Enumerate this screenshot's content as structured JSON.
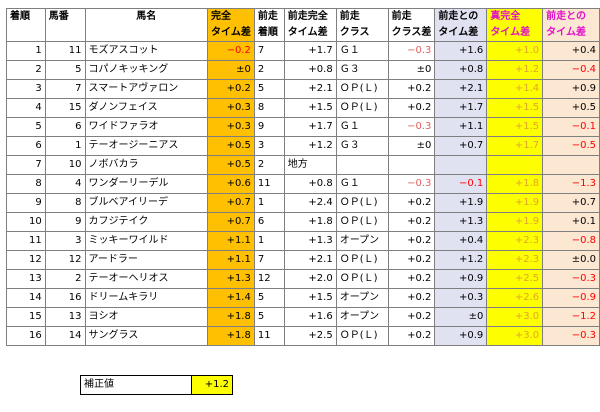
{
  "headers": {
    "rank": "着順",
    "num": "馬番",
    "name": "馬名",
    "time_diff_1": "完全",
    "time_diff_2": "タイム差",
    "prev_rank_1": "前走",
    "prev_rank_2": "着順",
    "prev_full_1": "前走完全",
    "prev_full_2": "タイム差",
    "prev_class_1": "前走",
    "prev_class_2": "クラス",
    "class_diff_1": "前走",
    "class_diff_2": "クラス差",
    "prev_cmp_1": "前走との",
    "prev_cmp_2": "タイム差",
    "true_1": "真完全",
    "true_2": "タイム差",
    "last_1": "前走との",
    "last_2": "タイム差"
  },
  "rows": [
    {
      "rank": "1",
      "num": "11",
      "name": "モズアスコット",
      "time": "−0.2",
      "prev_rank": "7",
      "prev_full": "+1.7",
      "prev_class": "Ｇ１",
      "class_diff": "−0.3",
      "prev_cmp": "+1.6",
      "true": "+1.0",
      "last": "+0.4"
    },
    {
      "rank": "2",
      "num": "5",
      "name": "コパノキッキング",
      "time": "±0",
      "prev_rank": "2",
      "prev_full": "+0.8",
      "prev_class": "Ｇ３",
      "class_diff": "±0",
      "prev_cmp": "+0.8",
      "true": "+1.2",
      "last": "−0.4"
    },
    {
      "rank": "3",
      "num": "7",
      "name": "スマートアヴァロン",
      "time": "+0.2",
      "prev_rank": "5",
      "prev_full": "+2.1",
      "prev_class": "ＯＰ(Ｌ)",
      "class_diff": "+0.2",
      "prev_cmp": "+2.1",
      "true": "+1.4",
      "last": "+0.9"
    },
    {
      "rank": "4",
      "num": "15",
      "name": "ダノンフェイス",
      "time": "+0.3",
      "prev_rank": "8",
      "prev_full": "+1.5",
      "prev_class": "ＯＰ(Ｌ)",
      "class_diff": "+0.2",
      "prev_cmp": "+1.7",
      "true": "+1.5",
      "last": "+0.5"
    },
    {
      "rank": "5",
      "num": "6",
      "name": "ワイドファラオ",
      "time": "+0.3",
      "prev_rank": "9",
      "prev_full": "+1.7",
      "prev_class": "Ｇ１",
      "class_diff": "−0.3",
      "prev_cmp": "+1.1",
      "true": "+1.5",
      "last": "−0.1"
    },
    {
      "rank": "6",
      "num": "1",
      "name": "テーオージーニアス",
      "time": "+0.5",
      "prev_rank": "3",
      "prev_full": "+1.2",
      "prev_class": "Ｇ３",
      "class_diff": "±0",
      "prev_cmp": "+0.7",
      "true": "+1.7",
      "last": "−0.5"
    },
    {
      "rank": "7",
      "num": "10",
      "name": "ノボバカラ",
      "time": "+0.5",
      "prev_rank": "2",
      "prev_full": "地方",
      "prev_class": "",
      "class_diff": "",
      "prev_cmp": "",
      "true": "",
      "last": ""
    },
    {
      "rank": "8",
      "num": "4",
      "name": "ワンダーリーデル",
      "time": "+0.6",
      "prev_rank": "11",
      "prev_full": "+0.8",
      "prev_class": "Ｇ１",
      "class_diff": "−0.3",
      "prev_cmp": "−0.1",
      "true": "+1.8",
      "last": "−1.3"
    },
    {
      "rank": "9",
      "num": "8",
      "name": "ブルベアイリーデ",
      "time": "+0.7",
      "prev_rank": "1",
      "prev_full": "+2.4",
      "prev_class": "ＯＰ(Ｌ)",
      "class_diff": "+0.2",
      "prev_cmp": "+1.9",
      "true": "+1.9",
      "last": "+0.7"
    },
    {
      "rank": "10",
      "num": "9",
      "name": "カフジテイク",
      "time": "+0.7",
      "prev_rank": "6",
      "prev_full": "+1.8",
      "prev_class": "ＯＰ(Ｌ)",
      "class_diff": "+0.2",
      "prev_cmp": "+1.3",
      "true": "+1.9",
      "last": "+0.1"
    },
    {
      "rank": "11",
      "num": "3",
      "name": "ミッキーワイルド",
      "time": "+1.1",
      "prev_rank": "1",
      "prev_full": "+1.3",
      "prev_class": "オープン",
      "class_diff": "+0.2",
      "prev_cmp": "+0.4",
      "true": "+2.3",
      "last": "−0.8"
    },
    {
      "rank": "12",
      "num": "12",
      "name": "アードラー",
      "time": "+1.1",
      "prev_rank": "7",
      "prev_full": "+2.1",
      "prev_class": "ＯＰ(Ｌ)",
      "class_diff": "+0.2",
      "prev_cmp": "+1.2",
      "true": "+2.3",
      "last": "±0.0"
    },
    {
      "rank": "13",
      "num": "2",
      "name": "テーオーヘリオス",
      "time": "+1.3",
      "prev_rank": "12",
      "prev_full": "+2.0",
      "prev_class": "ＯＰ(Ｌ)",
      "class_diff": "+0.2",
      "prev_cmp": "+0.9",
      "true": "+2.5",
      "last": "−0.3"
    },
    {
      "rank": "14",
      "num": "16",
      "name": "ドリームキラリ",
      "time": "+1.4",
      "prev_rank": "5",
      "prev_full": "+1.5",
      "prev_class": "オープン",
      "class_diff": "+0.2",
      "prev_cmp": "+0.3",
      "true": "+2.6",
      "last": "−0.9"
    },
    {
      "rank": "15",
      "num": "13",
      "name": "ヨシオ",
      "time": "+1.8",
      "prev_rank": "5",
      "prev_full": "+1.6",
      "prev_class": "オープン",
      "class_diff": "+0.2",
      "prev_cmp": "±0",
      "true": "+3.0",
      "last": "−1.2"
    },
    {
      "rank": "16",
      "num": "14",
      "name": "サングラス",
      "time": "+1.8",
      "prev_rank": "11",
      "prev_full": "+2.5",
      "prev_class": "ＯＰ(Ｌ)",
      "class_diff": "+0.2",
      "prev_cmp": "+0.9",
      "true": "+3.0",
      "last": "−0.3"
    }
  ],
  "correction": {
    "label": "補正値",
    "value": "+1.2"
  },
  "colors": {
    "time": "#fec000",
    "prev": "#e0e2f2",
    "true": "#fdfe00",
    "last": "#fce7d3",
    "negative": "#ff0000",
    "header_accent": "#e011c8"
  }
}
